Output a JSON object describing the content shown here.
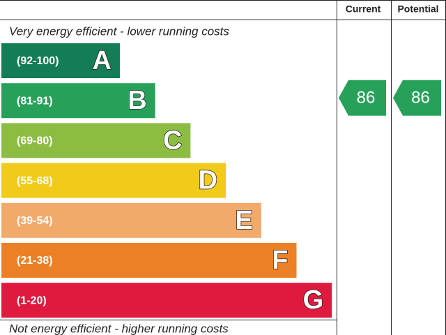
{
  "header": {
    "columns": [
      "Current",
      "Potential"
    ]
  },
  "top_text": "Very energy efficient - lower running costs",
  "bottom_text": "Not energy efficient - higher running costs",
  "bands": [
    {
      "range": "(92-100)",
      "letter": "A",
      "color": "#137d55"
    },
    {
      "range": "(81-91)",
      "letter": "B",
      "color": "#27a15a"
    },
    {
      "range": "(69-80)",
      "letter": "C",
      "color": "#8cbc42"
    },
    {
      "range": "(55-68)",
      "letter": "D",
      "color": "#f2ca1a"
    },
    {
      "range": "(39-54)",
      "letter": "E",
      "color": "#f2aa6b"
    },
    {
      "range": "(21-38)",
      "letter": "F",
      "color": "#ec8026"
    },
    {
      "range": "(1-20)",
      "letter": "G",
      "color": "#e0193e"
    }
  ],
  "current": 86,
  "potential": 86
}
